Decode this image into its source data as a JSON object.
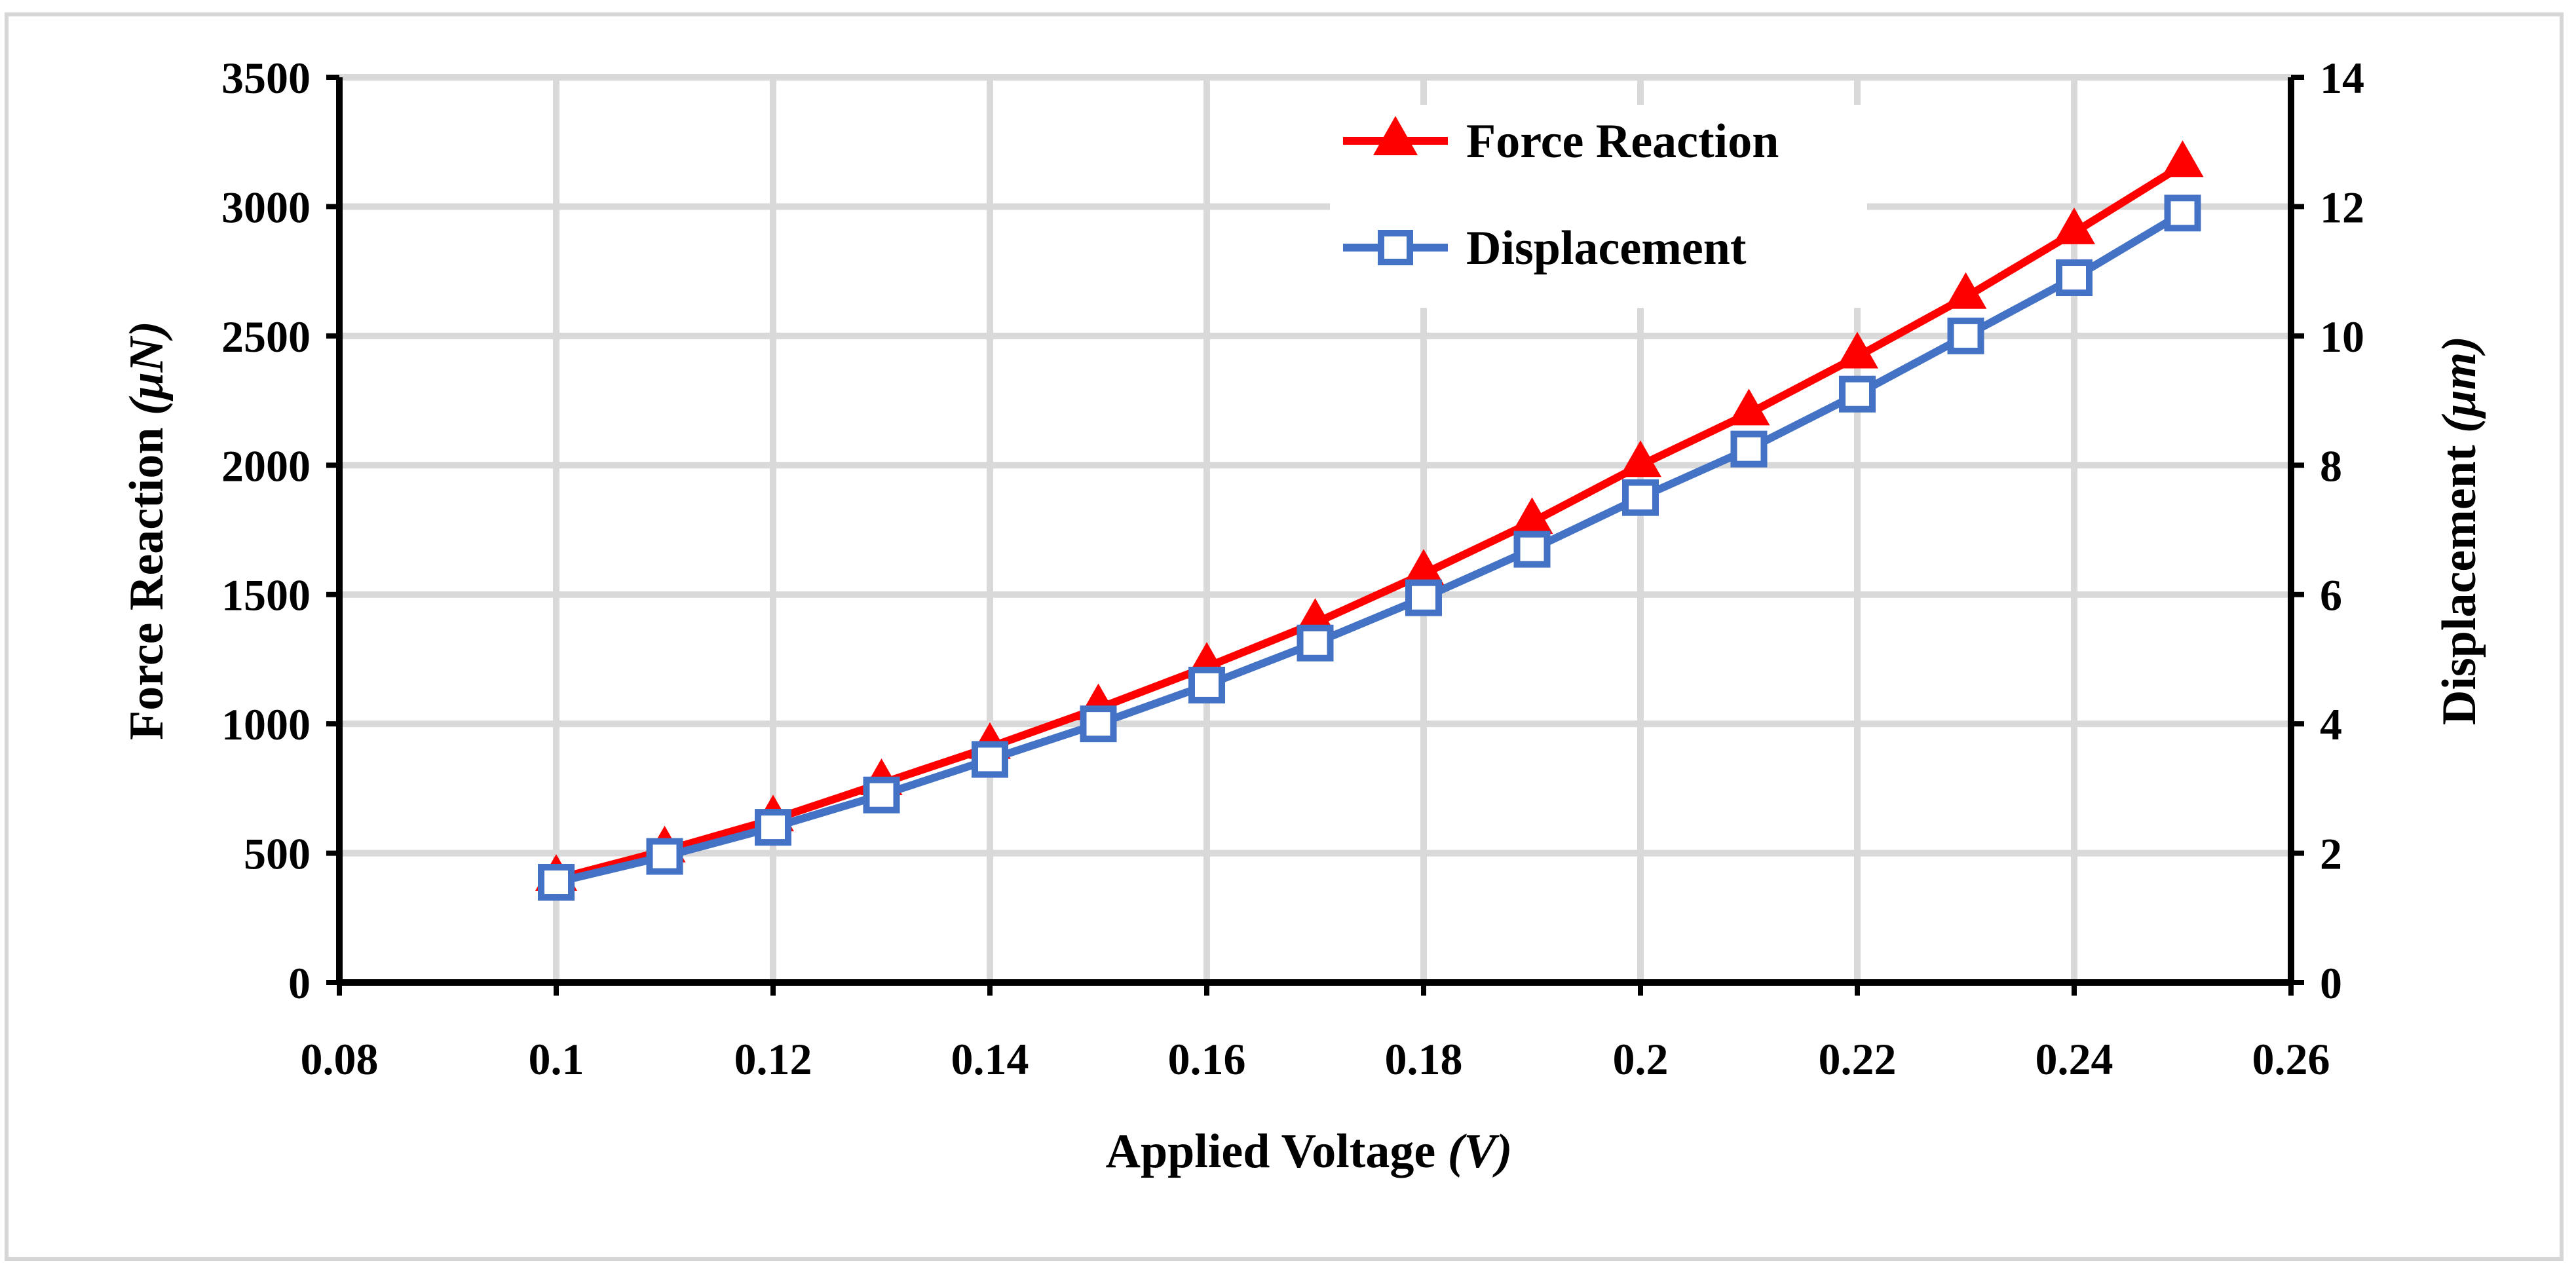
{
  "chart_data": {
    "type": "line",
    "title": "",
    "xlabel": "Applied Voltage",
    "xlabel_unit": "(V)",
    "ylabel": "Force Reaction",
    "ylabel_unit": "(μN)",
    "y2label": "Displacement",
    "y2label_unit": "(μm)",
    "xlim": [
      0.08,
      0.26
    ],
    "ylim": [
      0,
      3500
    ],
    "y2lim": [
      0,
      14
    ],
    "x_ticks": [
      "0.08",
      "0.1",
      "0.12",
      "0.14",
      "0.16",
      "0.18",
      "0.2",
      "0.22",
      "0.24",
      "0.26"
    ],
    "y_ticks": [
      "0",
      "500",
      "1000",
      "1500",
      "2000",
      "2500",
      "3000",
      "3500"
    ],
    "y2_ticks": [
      "0",
      "2",
      "4",
      "6",
      "8",
      "10",
      "12",
      "14"
    ],
    "grid": "vertical and horizontal",
    "legend_position": "top-center",
    "x": [
      0.1,
      0.11,
      0.12,
      0.13,
      0.14,
      0.15,
      0.16,
      0.17,
      0.18,
      0.19,
      0.2,
      0.21,
      0.22,
      0.23,
      0.24,
      0.25
    ],
    "series": [
      {
        "name": "Force Reaction",
        "axis": "left",
        "color": "#ff0000",
        "marker": "triangle",
        "values": [
          400,
          510,
          630,
          770,
          910,
          1060,
          1220,
          1390,
          1580,
          1780,
          2000,
          2200,
          2420,
          2650,
          2900,
          3160
        ]
      },
      {
        "name": "Displacement",
        "axis": "right",
        "color": "#4472c4",
        "marker": "open-square",
        "values": [
          1.55,
          1.95,
          2.4,
          2.9,
          3.45,
          4.0,
          4.6,
          5.25,
          5.95,
          6.7,
          7.5,
          8.25,
          9.1,
          10.0,
          10.9,
          11.9
        ]
      }
    ]
  }
}
